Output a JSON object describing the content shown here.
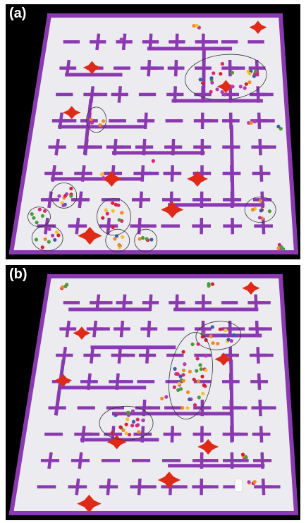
{
  "figure": {
    "panels": [
      {
        "id": "a",
        "label": "(a)"
      },
      {
        "id": "b",
        "label": "(b)"
      }
    ]
  },
  "colors": {
    "background": "#000000",
    "floor": "#ececf0",
    "wall": "#8a39b0",
    "obstacle": "#e02a18",
    "cluster_outline": "#333333",
    "agent_palette": [
      "#e0246e",
      "#f08a1c",
      "#d81e2e",
      "#f2c12e",
      "#b23ab8",
      "#4b9a3a",
      "#3a5ab0"
    ]
  },
  "scene": {
    "panel_a": {
      "obstacles": 8,
      "agent_clusters": 9,
      "stray_agents": 7
    },
    "panel_b": {
      "obstacles": 8,
      "agent_clusters": 3,
      "stray_agents": 5
    }
  }
}
